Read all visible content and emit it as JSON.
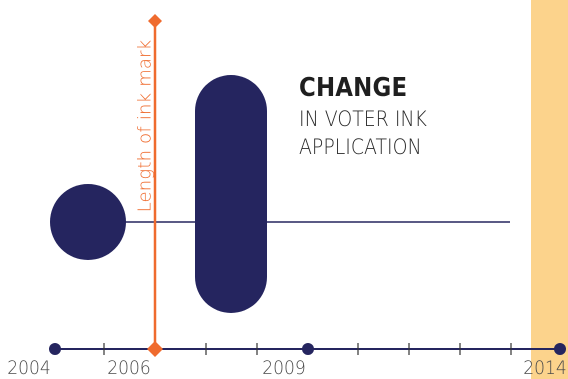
{
  "title": {
    "main": "CHANGE",
    "line2": "IN VOTER INK",
    "line3": "APPLICATION"
  },
  "ink_mark_label": "Length of ink mark",
  "timeline": {
    "years": [
      "2004",
      "2006",
      "2009",
      "2014"
    ]
  },
  "colors": {
    "navy": "#25255f",
    "orange": "#ef6b2e",
    "peach_band": "#fcd38c",
    "axis_tick": "#333333"
  }
}
